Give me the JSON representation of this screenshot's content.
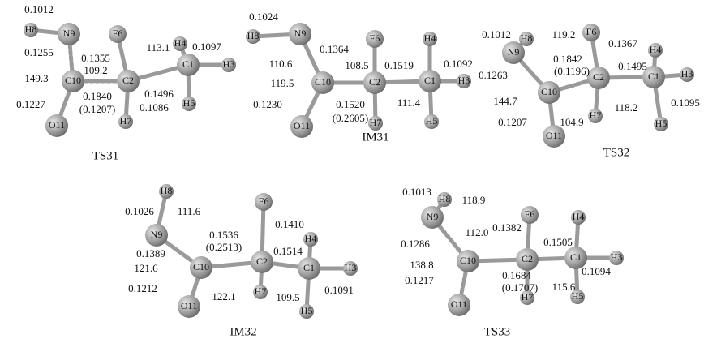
{
  "molecules": [
    {
      "name": "TS31",
      "atoms": [
        "H8",
        "N9",
        "F6",
        "H4",
        "C1",
        "H3",
        "C2",
        "C10",
        "H5",
        "H7",
        "O11"
      ],
      "annotations": [
        "0.1012",
        "0.1255",
        "0.1355",
        "109.2",
        "113.1",
        "0.1097",
        "149.3",
        "0.1227",
        "0.1496",
        "0.1840",
        "(0.1207)",
        "0.1086"
      ]
    },
    {
      "name": "IM31",
      "atoms": [
        "H8",
        "N9",
        "F6",
        "H4",
        "C1",
        "H3",
        "C2",
        "C10",
        "H7",
        "H5",
        "O11"
      ],
      "annotations": [
        "0.1024",
        "0.1364",
        "110.6",
        "108.5",
        "0.1519",
        "0.1092",
        "119.5",
        "0.1230",
        "0.1520",
        "(0.2605)",
        "111.4"
      ]
    },
    {
      "name": "TS32",
      "atoms": [
        "H8",
        "N9",
        "F6",
        "H4",
        "C1",
        "H3",
        "C2",
        "C10",
        "H7",
        "H5",
        "O11"
      ],
      "annotations": [
        "0.1012",
        "119.2",
        "0.1367",
        "0.1842",
        "(0.1196)",
        "0.1495",
        "0.1263",
        "144.7",
        "0.1207",
        "104.9",
        "118.2",
        "0.1095"
      ]
    },
    {
      "name": "IM32",
      "atoms": [
        "H8",
        "F6",
        "N9",
        "H4",
        "C2",
        "C10",
        "H3",
        "C1",
        "H7",
        "O11",
        "H5"
      ],
      "annotations": [
        "0.1026",
        "111.6",
        "0.1410",
        "0.1536",
        "(0.2513)",
        "0.1514",
        "0.1389",
        "121.6",
        "0.1212",
        "122.1",
        "109.5",
        "0.1091"
      ]
    },
    {
      "name": "TS33",
      "atoms": [
        "H8",
        "N9",
        "F6",
        "H4",
        "C1",
        "H3",
        "C2",
        "C10",
        "H7",
        "O11",
        "H5"
      ],
      "annotations": [
        "0.1013",
        "118.9",
        "0.1382",
        "112.0",
        "0.1505",
        "0.1286",
        "138.8",
        "0.1684",
        "(0.1707)",
        "115.6",
        "0.1217",
        "0.1094"
      ]
    }
  ]
}
